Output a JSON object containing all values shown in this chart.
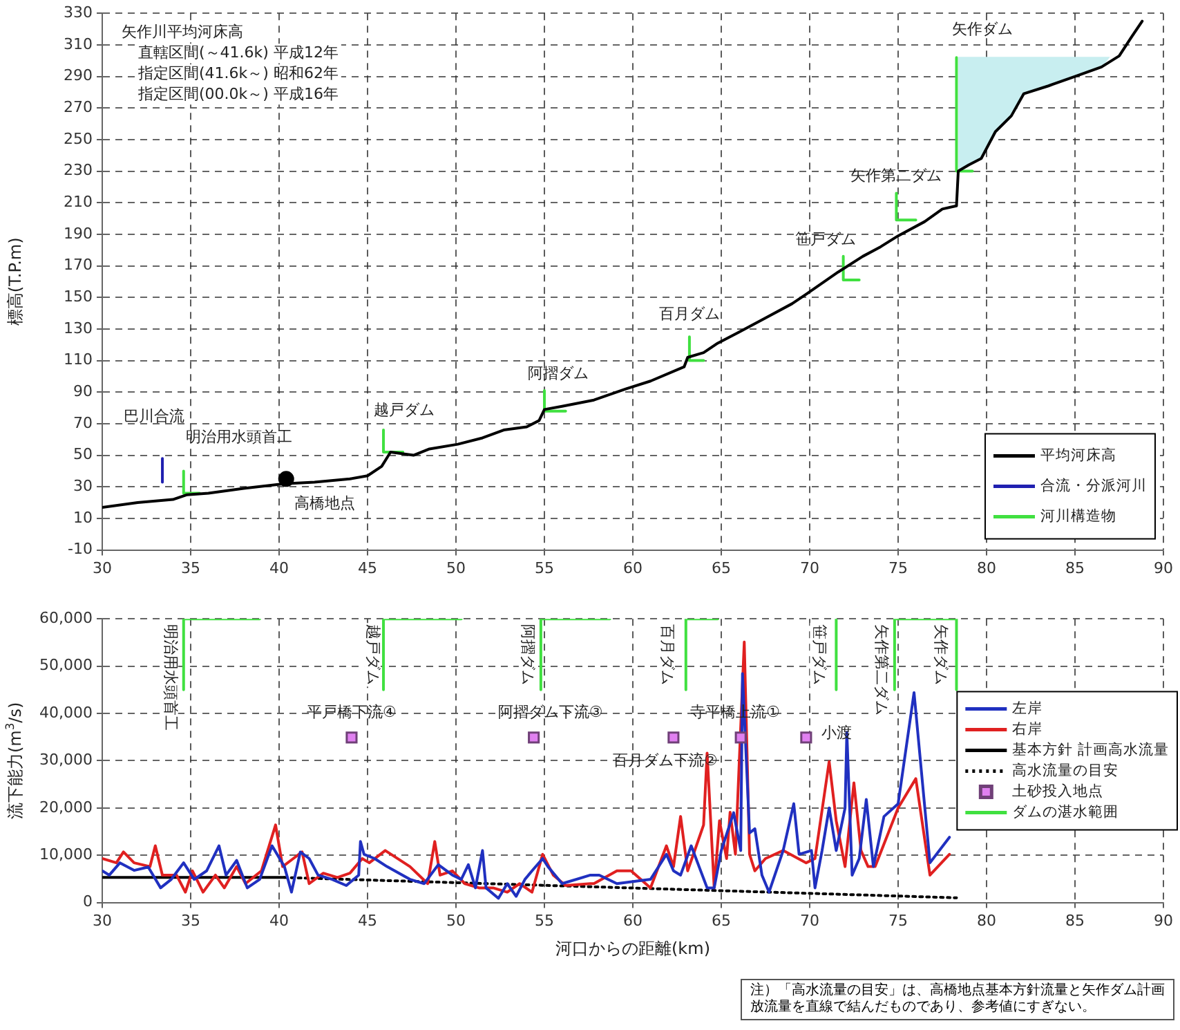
{
  "chart_data": [
    {
      "type": "line",
      "ylabel": "標高(T.P.m)",
      "xlim": [
        30,
        90
      ],
      "xticks": [
        30,
        35,
        40,
        45,
        50,
        55,
        60,
        65,
        70,
        75,
        80,
        85,
        90
      ],
      "ylim": [
        -10,
        330
      ],
      "yticks": [
        -10,
        10,
        30,
        50,
        70,
        90,
        110,
        130,
        150,
        170,
        190,
        210,
        230,
        250,
        270,
        290,
        310,
        330
      ],
      "grid": true,
      "legend": "bottom right",
      "annotations": [
        "矢作川平均河床高",
        "直轄区間(～41.6k) 平成12年",
        "指定区間(41.6k～) 昭和62年",
        "指定区間(00.0k～) 平成16年",
        {
          "text": "巴川合流",
          "x": 33.4,
          "y": 48
        },
        {
          "text": "明治用水頭首工",
          "x": 34.6,
          "y": 40
        },
        {
          "text": "高橋地点",
          "x": 40.4,
          "y": 35
        },
        {
          "text": "越戸ダム",
          "x": 45.9,
          "y": 66
        },
        {
          "text": "阿摺ダム",
          "x": 55,
          "y": 91
        },
        {
          "text": "百月ダム",
          "x": 63.2,
          "y": 125
        },
        {
          "text": "笹戸ダム",
          "x": 71.9,
          "y": 176
        },
        {
          "text": "矢作第二ダム",
          "x": 74.9,
          "y": 216
        },
        {
          "text": "矢作ダム",
          "x": 78.3,
          "y": 302
        }
      ],
      "series": [
        {
          "name": "平均河床高",
          "color": "#000000",
          "x": [
            30,
            32,
            34,
            34.8,
            36,
            38,
            40.3,
            42,
            44,
            45,
            45.8,
            46.3,
            47.6,
            48.5,
            50.1,
            51.5,
            52.7,
            54,
            54.7,
            55,
            56,
            57.8,
            59.6,
            61,
            62.9,
            63.1,
            64,
            64.8,
            66,
            67.5,
            69,
            69.8,
            71.6,
            73,
            74,
            75,
            76.5,
            77.5,
            78.3,
            78.4,
            79,
            79.7,
            80.5,
            81.4,
            82.1,
            83.5,
            85,
            86.5,
            87.5,
            88.2,
            88.8
          ],
          "values": [
            17,
            20,
            22,
            25,
            26,
            29,
            32,
            33,
            35,
            37,
            43,
            52,
            50,
            54,
            57,
            61,
            66,
            68,
            72,
            79,
            81,
            85,
            92,
            97,
            106,
            112,
            115,
            121,
            128,
            137,
            146,
            152,
            166,
            176,
            182,
            189,
            198,
            206,
            208,
            230,
            234,
            238,
            255,
            265,
            279,
            284,
            290,
            296,
            303,
            315,
            325
          ]
        },
        {
          "name": "合流・分派河川",
          "color": "#2020b0",
          "x": [
            33.4,
            33.4
          ],
          "values": [
            33,
            48
          ]
        },
        {
          "name": "河川構造物",
          "color": "#40e040",
          "x": [
            34.6,
            34.6,
            35.5,
            null,
            45.9,
            45.9,
            47.0,
            null,
            55,
            55,
            56.2,
            null,
            63.2,
            63.2,
            64.0,
            null,
            71.9,
            71.9,
            72.8,
            null,
            74.9,
            74.9,
            76,
            null,
            78.3,
            78.3,
            79.2
          ],
          "values": [
            40,
            26,
            26,
            null,
            66,
            52,
            52,
            null,
            91,
            78,
            78,
            null,
            125,
            110,
            110,
            null,
            176,
            161,
            161,
            null,
            216,
            199,
            199,
            null,
            302,
            230,
            230
          ]
        },
        {
          "type": "area",
          "color": "#c8eef0",
          "x": [
            78.4,
            86.9,
            86.5,
            85,
            83.5,
            82.1,
            81.4,
            80.5,
            79.7,
            79,
            78.4
          ],
          "values": [
            302,
            302,
            296,
            290,
            284,
            279,
            265,
            255,
            238,
            234,
            230
          ]
        },
        {
          "type": "scatter",
          "marker": "circle",
          "color": "#000000",
          "x": [
            40.4
          ],
          "values": [
            35
          ]
        }
      ]
    },
    {
      "type": "line",
      "xlabel": "河口からの距離(km)",
      "ylabel": "流下能力(m$^{3}$/s)",
      "xlim": [
        30,
        90
      ],
      "xticks": [
        30,
        35,
        40,
        45,
        50,
        55,
        60,
        65,
        70,
        75,
        80,
        85,
        90
      ],
      "ylim": [
        0,
        60000
      ],
      "yticks": [
        {
          "value": 0,
          "label": "0"
        },
        {
          "value": 10000,
          "label": "10,000"
        },
        {
          "value": 20000,
          "label": "20,000"
        },
        {
          "value": 30000,
          "label": "30,000"
        },
        {
          "value": 40000,
          "label": "40,000"
        },
        {
          "value": 50000,
          "label": "50,000"
        },
        {
          "value": 60000,
          "label": "60,000"
        }
      ],
      "grid": true,
      "legend": "right",
      "annotations": [
        {
          "text": "明治用水頭首工",
          "x": 34.6,
          "y": 60000
        },
        {
          "text": "越戸ダム",
          "x": 45.9,
          "y": 60000
        },
        {
          "text": "阿摺ダム",
          "x": 54.8,
          "y": 60000
        },
        {
          "text": "百月ダム",
          "x": 63.0,
          "y": 60000
        },
        {
          "text": "笹戸ダム",
          "x": 71.5,
          "y": 60000
        },
        {
          "text": "矢作第二ダム",
          "x": 74.8,
          "y": 60000
        },
        {
          "text": "矢作ダム",
          "x": 78.3,
          "y": 60000
        },
        {
          "text": "平戸橋下流④",
          "x": 44.1,
          "y": 34900
        },
        {
          "text": "阿摺ダム下流③",
          "x": 54.4,
          "y": 34900
        },
        {
          "text": "百月ダム下流②",
          "x": 62.3,
          "y": 34900
        },
        {
          "text": "寺平橋上流①",
          "x": 66.1,
          "y": 34900
        },
        {
          "text": "小渡",
          "x": 69.8,
          "y": 34900
        },
        "注）「高水流量の目安」は、高橋地点基本方針流量と矢作ダム計画放流量を直線で結んだものであり、参考値にすぎない。"
      ],
      "series": [
        {
          "name": "左岸",
          "color": "#2030c0",
          "x": [
            30,
            30.4,
            31,
            31.8,
            32.6,
            33.3,
            33.9,
            34.6,
            35.2,
            35.9,
            36.6,
            37,
            37.6,
            38.2,
            38.9,
            39.6,
            40.3,
            40.7,
            41.2,
            41.7,
            42.2,
            43,
            43.8,
            44.5,
            44.6,
            44.8,
            45.4,
            46.1,
            47.4,
            48.2,
            49,
            49.8,
            50.3,
            50.7,
            51.1,
            51.5,
            51.7,
            52.4,
            52.9,
            53.4,
            53.9,
            54.3,
            54.9,
            55.2,
            56,
            57.6,
            58.1,
            59.1,
            61,
            61.9,
            62.3,
            62.7,
            63.3,
            64.2,
            64.6,
            65,
            65.7,
            66.1,
            66.2,
            66.6,
            66.9,
            67.3,
            67.7,
            68.5,
            69.1,
            69.4,
            70.1,
            70.3,
            70.7,
            71.1,
            71.5,
            72,
            72.1,
            72.4,
            72.8,
            73.2,
            73.6,
            74.2,
            75,
            75.9,
            76.8,
            77.9
          ],
          "values": [
            6700,
            5800,
            8400,
            6800,
            7500,
            3100,
            4900,
            8400,
            4900,
            6700,
            12000,
            5800,
            8900,
            3100,
            4900,
            12000,
            7600,
            2200,
            10700,
            9300,
            5800,
            4900,
            3600,
            5800,
            12900,
            10200,
            9300,
            7600,
            4900,
            4000,
            8000,
            5800,
            4900,
            8000,
            3100,
            11000,
            3100,
            900,
            4000,
            1300,
            4900,
            6700,
            9300,
            7600,
            4000,
            5800,
            5800,
            4000,
            4900,
            10200,
            6700,
            5800,
            12000,
            3100,
            3100,
            11000,
            19000,
            11000,
            48400,
            14700,
            15600,
            5800,
            2200,
            11000,
            20900,
            10200,
            11000,
            3100,
            11000,
            20000,
            11000,
            20000,
            36000,
            5800,
            9300,
            21800,
            7600,
            18200,
            20900,
            44400,
            8400,
            13800
          ]
        },
        {
          "name": "右岸",
          "color": "#e02020",
          "x": [
            30,
            30.8,
            31.2,
            31.8,
            32.7,
            33,
            33.4,
            34.2,
            34.7,
            35.1,
            35.7,
            36.4,
            36.9,
            37.6,
            38.1,
            39,
            39.8,
            40.2,
            40.8,
            41.3,
            41.7,
            42.5,
            43.3,
            44,
            44.7,
            45.1,
            46,
            47.4,
            48.4,
            48.8,
            49.1,
            49.8,
            50.5,
            51.3,
            52.1,
            52.9,
            53.6,
            54.3,
            54.9,
            55.5,
            56.2,
            57.6,
            57.8,
            59.1,
            59.9,
            61,
            61.9,
            62.3,
            62.7,
            63.1,
            64,
            64.2,
            64.6,
            64.9,
            65.3,
            65.5,
            65.8,
            66.3,
            66.6,
            66.9,
            67.5,
            68.5,
            69.8,
            70.3,
            71.1,
            71.5,
            72,
            72.5,
            72.9,
            73.3,
            73.7,
            75,
            76,
            76.8,
            77.9
          ],
          "values": [
            9300,
            8400,
            10700,
            8400,
            7600,
            12000,
            5800,
            5800,
            2200,
            6700,
            2200,
            5800,
            3100,
            7600,
            4000,
            6700,
            16400,
            7600,
            9300,
            10700,
            4000,
            6200,
            5300,
            6200,
            9300,
            8400,
            11000,
            7600,
            4000,
            12900,
            5800,
            6700,
            4000,
            3100,
            3100,
            2200,
            4000,
            2200,
            10200,
            5800,
            3600,
            4000,
            4000,
            6700,
            6700,
            3100,
            12000,
            7600,
            18200,
            6700,
            16400,
            31600,
            3100,
            17300,
            9300,
            19100,
            10200,
            55100,
            10200,
            6700,
            9300,
            11000,
            8400,
            9300,
            29800,
            17300,
            7600,
            25300,
            11000,
            7600,
            7600,
            20000,
            26200,
            5800,
            10200
          ]
        },
        {
          "name": "基本方針 計画高水流量",
          "color": "#000000",
          "x": [
            30,
            40.3
          ],
          "values": [
            5300,
            5300
          ]
        },
        {
          "name": "高水流量の目安",
          "color": "#000000",
          "line_style": "dotted",
          "x": [
            40.3,
            78.3
          ],
          "values": [
            5300,
            1000
          ]
        },
        {
          "name": "土砂投入地点",
          "type": "scatter",
          "marker": "square",
          "color": "#e080f0",
          "x": [
            44.1,
            54.4,
            62.3,
            66.1,
            69.8
          ],
          "values": [
            34900,
            34900,
            34900,
            34900,
            34900
          ]
        },
        {
          "name": "ダムの湛水範囲",
          "color": "#40e040",
          "x": [
            34.6,
            34.6,
            38.9,
            null,
            45.9,
            45.9,
            50.3,
            null,
            54.8,
            54.8,
            58.7,
            null,
            63.0,
            63.0,
            64.8,
            null,
            71.5,
            71.5,
            null,
            74.8,
            74.8,
            78.3,
            78.3
          ],
          "values": [
            45000,
            60000,
            60000,
            null,
            45000,
            60000,
            60000,
            null,
            45000,
            60000,
            60000,
            null,
            45000,
            60000,
            60000,
            null,
            45000,
            60000,
            null,
            45000,
            60000,
            60000,
            45000
          ]
        }
      ]
    }
  ]
}
